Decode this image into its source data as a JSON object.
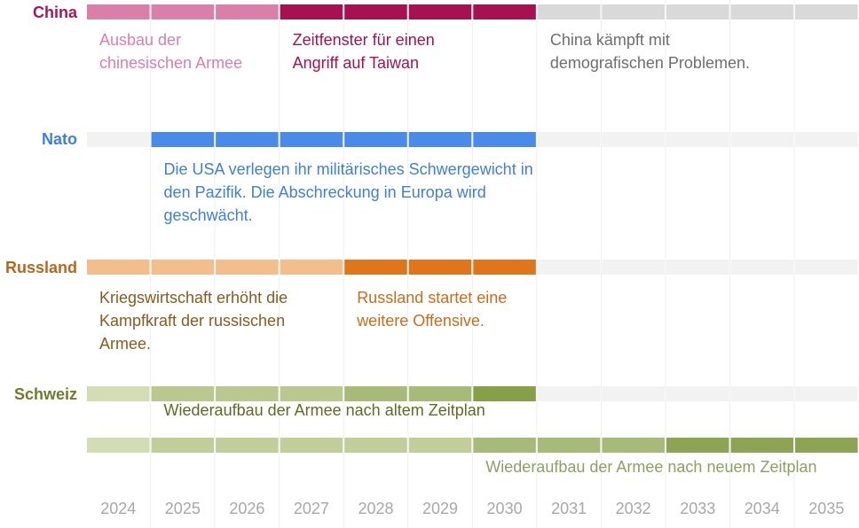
{
  "chart_data": {
    "type": "timeline",
    "years": [
      "2024",
      "2025",
      "2026",
      "2027",
      "2028",
      "2029",
      "2030",
      "2031",
      "2032",
      "2033",
      "2034",
      "2035"
    ],
    "rows": [
      {
        "id": "china",
        "label": "China",
        "label_color": "#a3185a",
        "segments": [
          {
            "start": "2024",
            "end": "2026",
            "color": "#d97fa8"
          },
          {
            "start": "2027",
            "end": "2030",
            "color": "#a8114f"
          },
          {
            "start": "2031",
            "end": "2035",
            "color": "#d9d9d9"
          }
        ],
        "annotations": [
          {
            "start": "2024",
            "color": "#d97fa8",
            "lines": [
              "Ausbau der",
              "chinesischen Armee"
            ]
          },
          {
            "start": "2027",
            "color": "#a8114f",
            "lines": [
              "Zeitfenster für einen",
              "Angriff auf Taiwan"
            ]
          },
          {
            "start": "2031",
            "color": "#6e6e6e",
            "lines": [
              "China kämpft mit",
              "demografischen Problemen."
            ]
          }
        ]
      },
      {
        "id": "nato",
        "label": "Nato",
        "label_color": "#3e7fd9",
        "segments": [
          {
            "start": "2024",
            "end": "2024",
            "color": "#f2f2f2"
          },
          {
            "start": "2025",
            "end": "2030",
            "color": "#4a8aeb"
          },
          {
            "start": "2031",
            "end": "2035",
            "color": "#f2f2f2"
          }
        ],
        "annotations": [
          {
            "start": "2025",
            "color": "#3e7fd9",
            "lines": [
              "Die USA verlegen ihr militärisches Schwergewicht in",
              "den Pazifik. Die Abschreckung in Europa wird",
              "geschwächt."
            ]
          }
        ]
      },
      {
        "id": "russland",
        "label": "Russland",
        "label_color": "#b8661e",
        "segments": [
          {
            "start": "2024",
            "end": "2027",
            "color": "#f2be8c"
          },
          {
            "start": "2028",
            "end": "2030",
            "color": "#e0761c"
          },
          {
            "start": "2031",
            "end": "2035",
            "color": "#f2f2f2"
          }
        ],
        "annotations": [
          {
            "start": "2024",
            "color": "#8a5a1f",
            "lines": [
              "Kriegswirtschaft erhöht die",
              "Kampfkraft der russischen",
              "Armee."
            ]
          },
          {
            "start": "2028",
            "color": "#c86d1c",
            "lines": [
              "Russland startet eine",
              "weitere Offensive."
            ]
          }
        ]
      },
      {
        "id": "schweiz",
        "label": "Schweiz",
        "label_color": "#6e7d2c",
        "segments": [
          {
            "start": "2024",
            "end": "2024",
            "color": "#d3dcb4"
          },
          {
            "start": "2025",
            "end": "2027",
            "color": "#bac78f"
          },
          {
            "start": "2028",
            "end": "2029",
            "color": "#a8ba78"
          },
          {
            "start": "2030",
            "end": "2030",
            "color": "#86a04a"
          },
          {
            "start": "2031",
            "end": "2035",
            "color": "#f2f2f2"
          }
        ],
        "annotations": [
          {
            "start": "2025",
            "color": "#5e6c22",
            "lines": [
              "Wiederaufbau der Armee nach altem Zeitplan"
            ]
          }
        ]
      },
      {
        "id": "schweiz-neu",
        "label": "",
        "label_color": "#6e7d2c",
        "segments": [
          {
            "start": "2024",
            "end": "2024",
            "color": "#d3dcb4"
          },
          {
            "start": "2025",
            "end": "2029",
            "color": "#c2cd9a"
          },
          {
            "start": "2030",
            "end": "2032",
            "color": "#a8ba78"
          },
          {
            "start": "2033",
            "end": "2035",
            "color": "#8ea455"
          }
        ],
        "annotations": [
          {
            "start": "2030",
            "color": "#8fa060",
            "lines": [
              "Wiederaufbau der Armee nach neuem Zeitplan"
            ]
          }
        ]
      }
    ]
  }
}
